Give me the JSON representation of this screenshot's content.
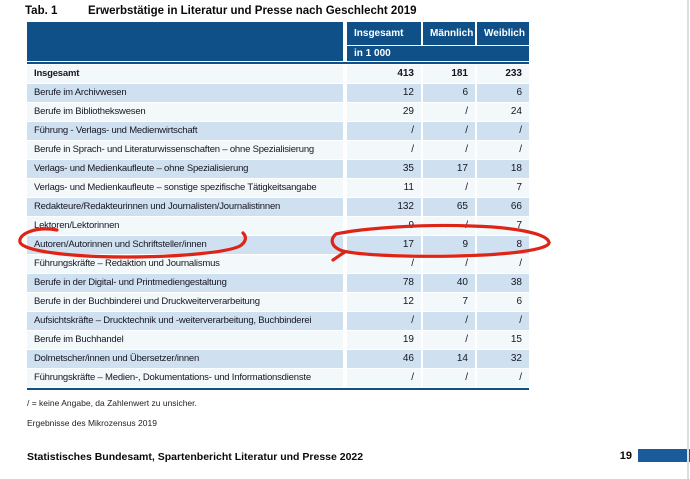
{
  "title": {
    "tab_label": "Tab. 1",
    "text": "Erwerbstätige in Literatur und Presse nach Geschlecht 2019"
  },
  "table": {
    "columns": [
      "Insgesamt",
      "Männlich",
      "Weiblich"
    ],
    "unit_row": "in 1 000",
    "rows": [
      {
        "label": "Insgesamt",
        "bold": true,
        "values": [
          "413",
          "181",
          "233"
        ]
      },
      {
        "label": "Berufe im Archivwesen",
        "values": [
          "12",
          "6",
          "6"
        ]
      },
      {
        "label": "Berufe im Bibliothekswesen",
        "values": [
          "29",
          "/",
          "24"
        ]
      },
      {
        "label": "Führung - Verlags- und Medienwirtschaft",
        "values": [
          "/",
          "/",
          "/"
        ]
      },
      {
        "label": "Berufe in Sprach- und Literaturwissenschaften – ohne Spezialisierung",
        "values": [
          "/",
          "/",
          "/"
        ]
      },
      {
        "label": "Verlags- und Medienkaufleute – ohne Spezialisierung",
        "values": [
          "35",
          "17",
          "18"
        ]
      },
      {
        "label": "Verlags- und Medienkaufleute – sonstige spezifische Tätigkeitsangabe",
        "values": [
          "11",
          "/",
          "7"
        ]
      },
      {
        "label": "Redakteure/Redakteurinnen und Journalisten/Journalistinnen",
        "values": [
          "132",
          "65",
          "66"
        ]
      },
      {
        "label": "Lektoren/Lektorinnen",
        "values": [
          "9",
          "/",
          "7"
        ]
      },
      {
        "label": "Autoren/Autorinnen und Schriftsteller/innen",
        "values": [
          "17",
          "9",
          "8"
        ],
        "annotated": true
      },
      {
        "label": "Führungskräfte – Redaktion und Journalismus",
        "values": [
          "/",
          "/",
          "/"
        ]
      },
      {
        "label": "Berufe in der Digital- und Printmediengestaltung",
        "values": [
          "78",
          "40",
          "38"
        ]
      },
      {
        "label": "Berufe in der Buchbinderei und Druckweiterverarbeitung",
        "values": [
          "12",
          "7",
          "6"
        ]
      },
      {
        "label": "Aufsichtskräfte – Drucktechnik und -weiterverarbeitung, Buchbinderei",
        "values": [
          "/",
          "/",
          "/"
        ]
      },
      {
        "label": "Berufe im Buchhandel",
        "values": [
          "19",
          "/",
          "15"
        ]
      },
      {
        "label": "Dolmetscher/innen und Übersetzer/innen",
        "values": [
          "46",
          "14",
          "32"
        ]
      },
      {
        "label": "Führungskräfte – Medien-, Dokumentations- und Informationsdienste",
        "values": [
          "/",
          "/",
          "/"
        ]
      }
    ]
  },
  "footnotes": {
    "legend": "/ = keine Angabe, da Zahlenwert zu unsicher.",
    "source": "Ergebnisse des Mikrozensus 2019"
  },
  "footer": {
    "text": "Statistisches Bundesamt, Spartenbericht Literatur und Presse 2022",
    "page": "19"
  },
  "annotation": {
    "type": "hand-drawn red circles",
    "highlights": [
      "Autoren/Autorinnen und Schriftsteller/innen",
      "17",
      "9",
      "8"
    ]
  },
  "colors": {
    "header_blue": "#0e5087",
    "row_light_blue": "#cfe0f0",
    "row_pale": "#f3f8fb",
    "footer_bar_blue": "#1b5b9c",
    "annotation_red": "#de2417"
  }
}
